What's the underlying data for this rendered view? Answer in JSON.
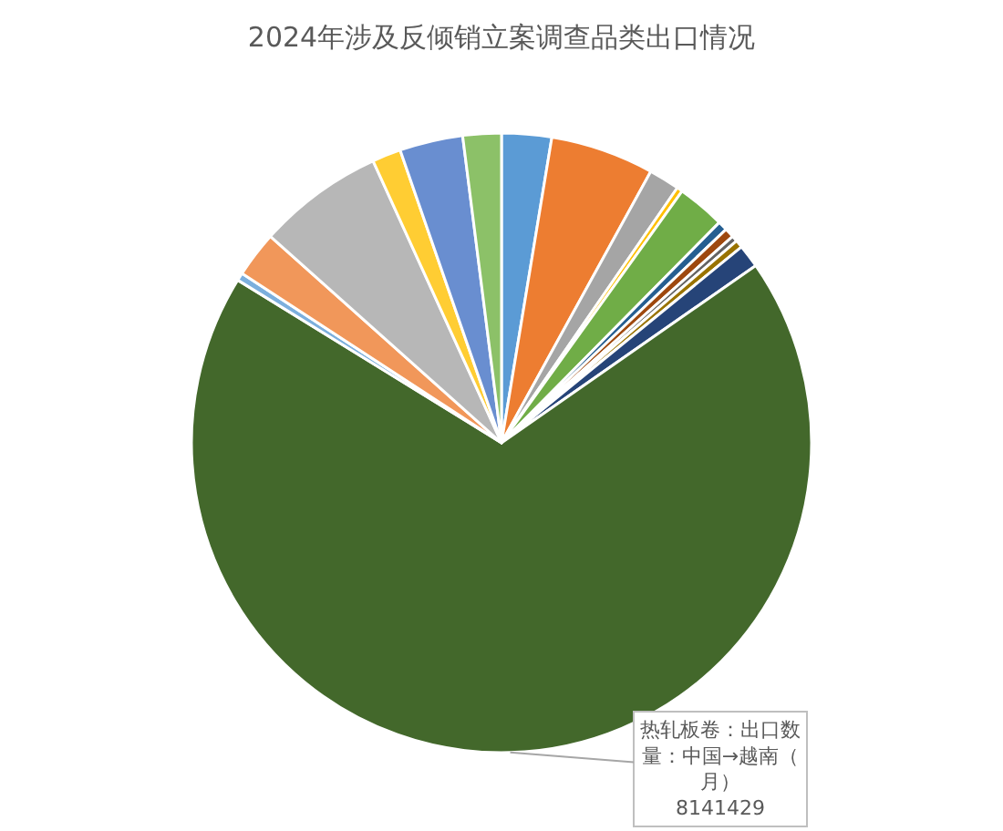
{
  "chart_data": {
    "type": "pie",
    "title": "2024年涉及反倾销立案调查品类出口情况",
    "categories": [
      null,
      null,
      null,
      null,
      null,
      null,
      null,
      null,
      null,
      null,
      "热轧板卷：出口数量：中国→越南（月）",
      null,
      null,
      null,
      null,
      null,
      null
    ],
    "values": [
      309000,
      642000,
      190000,
      36000,
      297000,
      59000,
      59000,
      36000,
      48000,
      143000,
      8141429,
      48000,
      285000,
      784000,
      178000,
      392000,
      238000
    ],
    "value_labels": [
      null,
      null,
      null,
      null,
      null,
      null,
      null,
      null,
      null,
      null,
      "8141429",
      null,
      null,
      null,
      null,
      null,
      null
    ],
    "colors": [
      "#5b9bd5",
      "#ed7d31",
      "#a5a5a5",
      "#ffc000",
      "#70ad47",
      "#255e91",
      "#9e480e",
      "#636363",
      "#997300",
      "#264478",
      "#43682b",
      "#7cafdd",
      "#f1975a",
      "#b7b7b7",
      "#ffcd33",
      "#698ed0",
      "#8cc168"
    ]
  }
}
